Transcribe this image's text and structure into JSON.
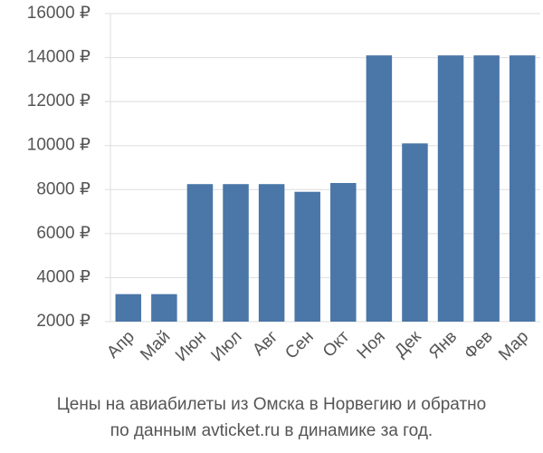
{
  "chart_data": {
    "type": "bar",
    "title": "Цены на авиабилеты из Омска в Норвегию и обратно",
    "subtitle": "по данным avticket.ru в динамике за год.",
    "categories": [
      "Апр",
      "Май",
      "Июн",
      "Июл",
      "Авг",
      "Сен",
      "Окт",
      "Ноя",
      "Дек",
      "Янв",
      "Фев",
      "Мар"
    ],
    "values": [
      3250,
      3250,
      8250,
      8250,
      8250,
      7900,
      8300,
      14100,
      10100,
      14100,
      14100,
      14100
    ],
    "color": "#4a76a8",
    "ylim": [
      2000,
      16000
    ],
    "yticks": [
      {
        "value": 2000,
        "label": "2000 ₽"
      },
      {
        "value": 4000,
        "label": "4000 ₽"
      },
      {
        "value": 6000,
        "label": "6000 ₽"
      },
      {
        "value": 8000,
        "label": "8000 ₽"
      },
      {
        "value": 10000,
        "label": "10000 ₽"
      },
      {
        "value": 12000,
        "label": "12000 ₽"
      },
      {
        "value": 14000,
        "label": "14000 ₽"
      },
      {
        "value": 16000,
        "label": "16000 ₽"
      }
    ],
    "grid": true
  }
}
